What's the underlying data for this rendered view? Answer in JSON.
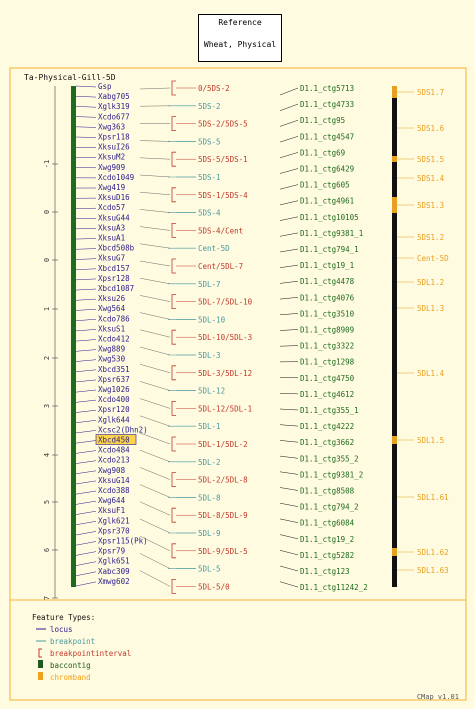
{
  "reference": {
    "title": "Reference",
    "subtitle": "Wheat, Physical"
  },
  "map_title": "Ta-Physical-Gill-5D",
  "scale_ticks": [
    "-1",
    "0",
    "0",
    "1",
    "2",
    "3",
    "4",
    "5",
    "6",
    "7"
  ],
  "loci": [
    "Gsp",
    "Xabg705",
    "Xglk319",
    "Xcdo677",
    "Xwg363",
    "Xpsr118",
    "XksuI26",
    "XksuM2",
    "Xwg909",
    "Xcdo1049",
    "Xwg419",
    "XksuD16",
    "Xcdo57",
    "XksuG44",
    "XksuA3",
    "XksuA1",
    "Xbcd508b",
    "XksuG7",
    "Xbcd157",
    "Xpsr128",
    "Xbcd1087",
    "Xksu26",
    "Xwg564",
    "Xcdo786",
    "XksuS1",
    "Xcdo412",
    "Xwg889",
    "Xwg530",
    "Xbcd351",
    "Xpsr637",
    "Xwg1026",
    "Xcdo400",
    "Xpsr120",
    "Xglk644",
    "Xcsc2(Dhn2)",
    "Xbcd450",
    "Xcdo484",
    "Xcdo213",
    "Xwg908",
    "XksuG14",
    "Xcdo388",
    "Xwg644",
    "XksuF1",
    "Xglk621",
    "Xpsr370",
    "Xpsr115(Pk)",
    "Xpsr79",
    "Xglk651",
    "Xabc309",
    "Xmwg602"
  ],
  "highlighted_locus": "Xbcd450",
  "breakpoints": [
    {
      "label": "0/5DS-2",
      "type": "interval"
    },
    {
      "label": "5DS-2",
      "type": "point"
    },
    {
      "label": "5DS-2/5DS-5",
      "type": "interval"
    },
    {
      "label": "5DS-5",
      "type": "point"
    },
    {
      "label": "5DS-5/5DS-1",
      "type": "interval"
    },
    {
      "label": "5DS-1",
      "type": "point"
    },
    {
      "label": "5DS-1/5DS-4",
      "type": "interval"
    },
    {
      "label": "5DS-4",
      "type": "point"
    },
    {
      "label": "5DS-4/Cent",
      "type": "interval"
    },
    {
      "label": "Cent-5D",
      "type": "point"
    },
    {
      "label": "Cent/5DL-7",
      "type": "interval"
    },
    {
      "label": "5DL-7",
      "type": "point"
    },
    {
      "label": "5DL-7/5DL-10",
      "type": "interval"
    },
    {
      "label": "5DL-10",
      "type": "point"
    },
    {
      "label": "5DL-10/5DL-3",
      "type": "interval"
    },
    {
      "label": "5DL-3",
      "type": "point"
    },
    {
      "label": "5DL-3/5DL-12",
      "type": "interval"
    },
    {
      "label": "5DL-12",
      "type": "point"
    },
    {
      "label": "5DL-12/5DL-1",
      "type": "interval"
    },
    {
      "label": "5DL-1",
      "type": "point"
    },
    {
      "label": "5DL-1/5DL-2",
      "type": "interval"
    },
    {
      "label": "5DL-2",
      "type": "point"
    },
    {
      "label": "5DL-2/5DL-8",
      "type": "interval"
    },
    {
      "label": "5DL-8",
      "type": "point"
    },
    {
      "label": "5DL-8/5DL-9",
      "type": "interval"
    },
    {
      "label": "5DL-9",
      "type": "point"
    },
    {
      "label": "5DL-9/5DL-5",
      "type": "interval"
    },
    {
      "label": "5DL-5",
      "type": "point"
    },
    {
      "label": "5DL-5/0",
      "type": "interval"
    }
  ],
  "contigs": [
    "D1.1_ctg5713",
    "D1.1_ctg4733",
    "D1.1_ctg95",
    "D1.1_ctg4547",
    "D1.1_ctg69",
    "D1.1_ctg6429",
    "D1.1_ctg605",
    "D1.1_ctg4961",
    "D1.1_ctg10105",
    "D1.1_ctg9381_1",
    "D1.1_ctg794_1",
    "D1.1_ctg19_1",
    "D1.1_ctg4478",
    "D1.1_ctg4076",
    "D1.1_ctg3510",
    "D1.1_ctg8909",
    "D1.1_ctg3322",
    "D1.1_ctg1298",
    "D1.1_ctg4750",
    "D1.1_ctg4612",
    "D1.1_ctg355_1",
    "D1.1_ctg4222",
    "D1.1_ctg3662",
    "D1.1_ctg355_2",
    "D1.1_ctg9381_2",
    "D1.1_ctg8508",
    "D1.1_ctg794_2",
    "D1.1_ctg6084",
    "D1.1_ctg19_2",
    "D1.1_ctg5282",
    "D1.1_ctg123",
    "D1.1_ctg11242_2"
  ],
  "chrombands": [
    "5DS1.7",
    "5DS1.6",
    "5DS1.5",
    "5DS1.4",
    "5DS1.3",
    "5DS1.2",
    "Cent-5D",
    "5DL1.2",
    "5DL1.3",
    "5DL1.4",
    "5DL1.5",
    "5DL1.61",
    "5DL1.62",
    "5DL1.63"
  ],
  "legend": {
    "title": "Feature Types:",
    "items": [
      {
        "label": "locus",
        "color": "#2a1c8c"
      },
      {
        "label": "breakpoint",
        "color": "#4a9aa0"
      },
      {
        "label": "breakpointinterval",
        "color": "#c0392b"
      },
      {
        "label": "baccontig",
        "color": "#1e5a1e"
      },
      {
        "label": "chromband",
        "color": "#f0a21a"
      }
    ]
  },
  "version": "CMap v1.01",
  "colors": {
    "locus": "#2a1c8c",
    "breakpoint": "#4a9aa0",
    "interval": "#c0392b",
    "contig": "#1e6b1e",
    "band": "#e8a020",
    "frame": "#f2b531"
  }
}
